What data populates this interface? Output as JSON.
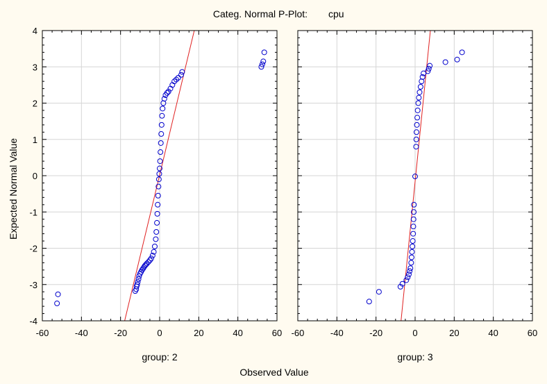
{
  "chart_data": {
    "type": "scatter",
    "title": "Categ. Normal P-Plot:",
    "variable": "cpu",
    "xlabel": "Observed Value",
    "ylabel": "Expected Normal Value",
    "xlim": [
      -60,
      60
    ],
    "ylim": [
      -4,
      4
    ],
    "x_ticks": [
      "-60",
      "-40",
      "-20",
      "0",
      "20",
      "40",
      "60"
    ],
    "y_ticks": [
      "4",
      "3",
      "2",
      "1",
      "0",
      "-1",
      "-2",
      "-3",
      "-4"
    ],
    "grid": true,
    "colors": {
      "points": "#0000cc",
      "line": "#e02020",
      "grid": "#d6d6d6",
      "background": "#fffbf0",
      "plot_bg": "#ffffff"
    },
    "panels": [
      {
        "label": "group: 2",
        "line": {
          "x": [
            -17.9,
            17.7
          ],
          "y": [
            -4,
            4
          ]
        },
        "points": [
          [
            -52.5,
            -3.52
          ],
          [
            -52,
            -3.27
          ],
          [
            -12.5,
            -3.18
          ],
          [
            -12,
            -3.13
          ],
          [
            -11.8,
            -3.05
          ],
          [
            -11.5,
            -3.0
          ],
          [
            -11.2,
            -2.93
          ],
          [
            -10.8,
            -2.85
          ],
          [
            -10.5,
            -2.77
          ],
          [
            -10,
            -2.7
          ],
          [
            -9.5,
            -2.65
          ],
          [
            -9,
            -2.6
          ],
          [
            -8.5,
            -2.56
          ],
          [
            -8,
            -2.52
          ],
          [
            -7.5,
            -2.48
          ],
          [
            -7,
            -2.45
          ],
          [
            -6.5,
            -2.42
          ],
          [
            -5.8,
            -2.38
          ],
          [
            -5,
            -2.33
          ],
          [
            -4.3,
            -2.28
          ],
          [
            -3.6,
            -2.2
          ],
          [
            -3,
            -2.1
          ],
          [
            -2.5,
            -1.95
          ],
          [
            -2,
            -1.75
          ],
          [
            -1.7,
            -1.55
          ],
          [
            -1.4,
            -1.3
          ],
          [
            -1.2,
            -1.05
          ],
          [
            -1,
            -0.8
          ],
          [
            -0.8,
            -0.55
          ],
          [
            -0.6,
            -0.3
          ],
          [
            -0.4,
            -0.1
          ],
          [
            -0.2,
            0.05
          ],
          [
            0,
            0.2
          ],
          [
            0.2,
            0.4
          ],
          [
            0.4,
            0.65
          ],
          [
            0.6,
            0.9
          ],
          [
            0.8,
            1.15
          ],
          [
            1,
            1.4
          ],
          [
            1.2,
            1.65
          ],
          [
            1.5,
            1.85
          ],
          [
            1.9,
            2.0
          ],
          [
            2.4,
            2.12
          ],
          [
            3,
            2.22
          ],
          [
            3.8,
            2.28
          ],
          [
            4.5,
            2.32
          ],
          [
            5.5,
            2.4
          ],
          [
            6.5,
            2.5
          ],
          [
            7.5,
            2.6
          ],
          [
            8.5,
            2.65
          ],
          [
            9.5,
            2.7
          ],
          [
            11,
            2.78
          ],
          [
            11.5,
            2.86
          ],
          [
            52,
            3.0
          ],
          [
            52.5,
            3.07
          ],
          [
            53,
            3.15
          ],
          [
            53.5,
            3.4
          ]
        ]
      },
      {
        "label": "group: 3",
        "line": {
          "x": [
            -7.2,
            7.8
          ],
          "y": [
            -4,
            4
          ]
        },
        "points": [
          [
            -23.5,
            -3.47
          ],
          [
            -18.5,
            -3.2
          ],
          [
            -7.5,
            -3.06
          ],
          [
            -6.5,
            -2.98
          ],
          [
            -4.5,
            -2.88
          ],
          [
            -3.8,
            -2.8
          ],
          [
            -3.2,
            -2.72
          ],
          [
            -2.8,
            -2.63
          ],
          [
            -2.4,
            -2.55
          ],
          [
            -2,
            -2.4
          ],
          [
            -1.8,
            -2.25
          ],
          [
            -1.6,
            -2.1
          ],
          [
            -1.4,
            -1.95
          ],
          [
            -1.2,
            -1.8
          ],
          [
            -1,
            -1.6
          ],
          [
            -0.9,
            -1.4
          ],
          [
            -0.8,
            -1.2
          ],
          [
            -0.7,
            -1.0
          ],
          [
            -0.6,
            -0.8
          ],
          [
            0,
            -0.02
          ],
          [
            0.5,
            0.8
          ],
          [
            0.6,
            1.0
          ],
          [
            0.7,
            1.2
          ],
          [
            0.9,
            1.4
          ],
          [
            1.1,
            1.6
          ],
          [
            1.3,
            1.8
          ],
          [
            1.6,
            2.0
          ],
          [
            1.9,
            2.15
          ],
          [
            2.3,
            2.3
          ],
          [
            2.8,
            2.45
          ],
          [
            3.3,
            2.6
          ],
          [
            3.8,
            2.72
          ],
          [
            4.3,
            2.82
          ],
          [
            6.5,
            2.88
          ],
          [
            7,
            2.95
          ],
          [
            7.5,
            3.03
          ],
          [
            15.5,
            3.13
          ],
          [
            21.5,
            3.2
          ],
          [
            24,
            3.4
          ]
        ]
      }
    ]
  }
}
